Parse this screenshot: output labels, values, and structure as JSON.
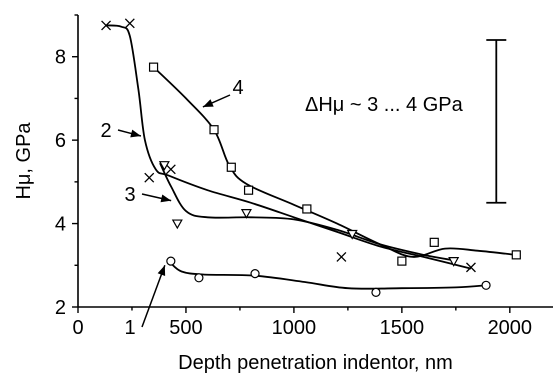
{
  "chart_data": {
    "type": "scatter",
    "title": "",
    "xlabel": "Depth penetration indentor, nm",
    "ylabel": "Hμ, GPa",
    "xlim": [
      0,
      2200
    ],
    "ylim": [
      2,
      9
    ],
    "xticks": [
      0,
      500,
      1000,
      1500,
      2000
    ],
    "yticks": [
      2,
      4,
      6,
      8
    ],
    "grid": false,
    "series": [
      {
        "name": "1",
        "marker": "circle",
        "points": [
          [
            430,
            3.1
          ],
          [
            560,
            2.7
          ],
          [
            820,
            2.8
          ],
          [
            1380,
            2.35
          ],
          [
            1890,
            2.52
          ]
        ],
        "curve": [
          [
            430,
            3.05
          ],
          [
            480,
            2.85
          ],
          [
            580,
            2.78
          ],
          [
            820,
            2.75
          ],
          [
            1050,
            2.6
          ],
          [
            1250,
            2.45
          ],
          [
            1500,
            2.45
          ],
          [
            1750,
            2.47
          ],
          [
            1890,
            2.52
          ]
        ]
      },
      {
        "name": "2",
        "marker": "x",
        "points": [
          [
            130,
            8.75
          ],
          [
            240,
            8.8
          ],
          [
            330,
            5.1
          ],
          [
            430,
            5.3
          ],
          [
            1220,
            3.2
          ],
          [
            1820,
            2.95
          ]
        ],
        "curve": [
          [
            130,
            8.75
          ],
          [
            200,
            8.72
          ],
          [
            240,
            8.5
          ],
          [
            280,
            7.2
          ],
          [
            310,
            6.0
          ],
          [
            360,
            5.3
          ],
          [
            420,
            5.15
          ],
          [
            600,
            4.8
          ],
          [
            800,
            4.5
          ],
          [
            1000,
            4.15
          ],
          [
            1200,
            3.8
          ],
          [
            1400,
            3.45
          ],
          [
            1600,
            3.2
          ],
          [
            1820,
            2.92
          ]
        ]
      },
      {
        "name": "3",
        "marker": "triangle-down",
        "points": [
          [
            400,
            5.4
          ],
          [
            460,
            4.0
          ],
          [
            780,
            4.25
          ],
          [
            1270,
            3.75
          ],
          [
            1740,
            3.1
          ]
        ],
        "curve": [
          [
            380,
            5.45
          ],
          [
            430,
            4.9
          ],
          [
            500,
            4.3
          ],
          [
            600,
            4.15
          ],
          [
            800,
            4.15
          ],
          [
            1000,
            4.1
          ],
          [
            1200,
            3.85
          ],
          [
            1400,
            3.5
          ],
          [
            1600,
            3.25
          ],
          [
            1740,
            3.12
          ]
        ]
      },
      {
        "name": "4",
        "marker": "square",
        "points": [
          [
            350,
            7.75
          ],
          [
            630,
            6.25
          ],
          [
            710,
            5.35
          ],
          [
            790,
            4.8
          ],
          [
            1060,
            4.35
          ],
          [
            1500,
            3.1
          ],
          [
            1650,
            3.55
          ],
          [
            2030,
            3.25
          ]
        ],
        "curve": [
          [
            350,
            7.75
          ],
          [
            500,
            7.0
          ],
          [
            630,
            6.25
          ],
          [
            700,
            5.4
          ],
          [
            780,
            4.95
          ],
          [
            1000,
            4.45
          ],
          [
            1200,
            4.0
          ],
          [
            1400,
            3.5
          ],
          [
            1550,
            3.2
          ],
          [
            1700,
            3.4
          ],
          [
            1850,
            3.35
          ],
          [
            2030,
            3.25
          ]
        ]
      }
    ],
    "annotations": [
      {
        "text": "1",
        "pointer_to": [
          430,
          3.05
        ]
      },
      {
        "text": "2",
        "pointer_to": [
          310,
          6.1
        ]
      },
      {
        "text": "3",
        "pointer_to": [
          450,
          4.55
        ]
      },
      {
        "text": "4",
        "pointer_to": [
          560,
          6.7
        ]
      },
      {
        "text": "ΔHμ ~  3 ... 4 GPa"
      }
    ],
    "error_bar": {
      "x": 2030,
      "y_low": 4.5,
      "y_high": 8.4
    }
  }
}
